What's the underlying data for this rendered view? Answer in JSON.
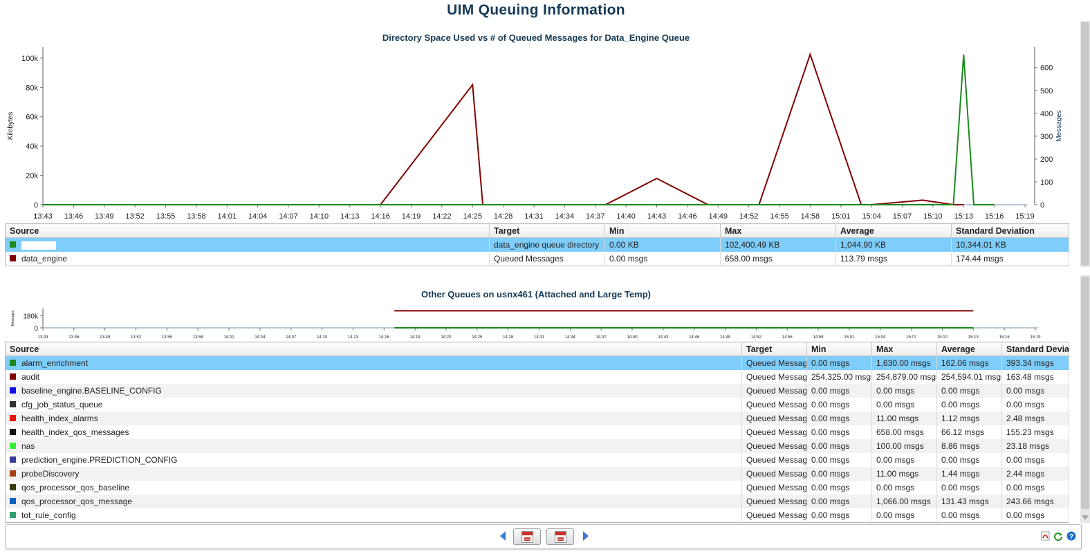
{
  "page": {
    "title": "UIM Queuing Information"
  },
  "chart1": {
    "title": "Directory Space Used  vs # of Queued Messages for Data_Engine Queue",
    "table": {
      "headers": [
        "Source",
        "Target",
        "Min",
        "Max",
        "Average",
        "Standard Deviation"
      ],
      "rows": [
        {
          "source": "",
          "target": "data_engine queue directory",
          "min": "0.00 KB",
          "max": "102,400.49 KB",
          "avg": "1,044.90 KB",
          "std": "10,344.01 KB",
          "color": "#1a8a1a",
          "selected": true
        },
        {
          "source": "data_engine",
          "target": "Queued Messages",
          "min": "0.00 msgs",
          "max": "658.00 msgs",
          "avg": "113.79 msgs",
          "std": "174.44 msgs",
          "color": "#800000",
          "selected": false
        }
      ]
    }
  },
  "chart2": {
    "title": "Other Queues on usnx461 (Attached and Large Temp)",
    "table": {
      "headers": [
        "Source",
        "Target",
        "Min",
        "Max",
        "Average",
        "Standard Deviation"
      ],
      "rows": [
        {
          "source": "alarm_enrichment",
          "target": "Queued Messages",
          "min": "0.00 msgs",
          "max": "1,630.00 msgs",
          "avg": "162.06 msgs",
          "std": "393.34 msgs",
          "color": "#1a8a1a"
        },
        {
          "source": "audit",
          "target": "Queued Messages",
          "min": "254,325.00 msgs",
          "max": "254,879.00 msgs",
          "avg": "254,594.01 msgs",
          "std": "163.48 msgs",
          "color": "#800000"
        },
        {
          "source": "baseline_engine.BASELINE_CONFIG",
          "target": "Queued Messages",
          "min": "0.00 msgs",
          "max": "0.00 msgs",
          "avg": "0.00 msgs",
          "std": "0.00 msgs",
          "color": "#1010ee"
        },
        {
          "source": "cfg_job_status_queue",
          "target": "Queued Messages",
          "min": "0.00 msgs",
          "max": "0.00 msgs",
          "avg": "0.00 msgs",
          "std": "0.00 msgs",
          "color": "#333333"
        },
        {
          "source": "health_index_alarms",
          "target": "Queued Messages",
          "min": "0.00 msgs",
          "max": "11.00 msgs",
          "avg": "1.12 msgs",
          "std": "2.48 msgs",
          "color": "#ee1111"
        },
        {
          "source": "health_index_qos_messages",
          "target": "Queued Messages",
          "min": "0.00 msgs",
          "max": "658.00 msgs",
          "avg": "66.12 msgs",
          "std": "155.23 msgs",
          "color": "#111111"
        },
        {
          "source": "nas",
          "target": "Queued Messages",
          "min": "0.00 msgs",
          "max": "100.00 msgs",
          "avg": "8.86 msgs",
          "std": "23.18 msgs",
          "color": "#33ee33"
        },
        {
          "source": "prediction_engine.PREDICTION_CONFIG",
          "target": "Queued Messages",
          "min": "0.00 msgs",
          "max": "0.00 msgs",
          "avg": "0.00 msgs",
          "std": "0.00 msgs",
          "color": "#3a3a99"
        },
        {
          "source": "probeDiscovery",
          "target": "Queued Messages",
          "min": "0.00 msgs",
          "max": "11.00 msgs",
          "avg": "1.44 msgs",
          "std": "2.44 msgs",
          "color": "#a04010"
        },
        {
          "source": "qos_processor_qos_baseline",
          "target": "Queued Messages",
          "min": "0.00 msgs",
          "max": "0.00 msgs",
          "avg": "0.00 msgs",
          "std": "0.00 msgs",
          "color": "#3a3a10"
        },
        {
          "source": "qos_processor_qos_message",
          "target": "Queued Messages",
          "min": "0.00 msgs",
          "max": "1,066.00 msgs",
          "avg": "131.43 msgs",
          "std": "243.66 msgs",
          "color": "#1060c0"
        },
        {
          "source": "tot_rule_config",
          "target": "Queued Messages",
          "min": "0.00 msgs",
          "max": "0.00 msgs",
          "avg": "0.00 msgs",
          "std": "0.00 msgs",
          "color": "#30a070"
        }
      ]
    }
  },
  "chart_data": [
    {
      "type": "line",
      "title": "Directory Space Used  vs # of Queued Messages for Data_Engine Queue",
      "xlabel": "",
      "ylabel": "Kilobytes",
      "y2label": "Messages",
      "x": [
        "13:43",
        "13:46",
        "13:49",
        "13:52",
        "13:55",
        "13:58",
        "14:01",
        "14:04",
        "14:07",
        "14:10",
        "14:13",
        "14:16",
        "14:19",
        "14:22",
        "14:25",
        "14:28",
        "14:31",
        "14:34",
        "14:37",
        "14:40",
        "14:43",
        "14:46",
        "14:49",
        "14:52",
        "14:55",
        "14:58",
        "15:01",
        "15:04",
        "15:07",
        "15:10",
        "15:13",
        "15:16",
        "15:19"
      ],
      "yticks": [
        "0",
        "20k",
        "40k",
        "60k",
        "80k",
        "100k"
      ],
      "ylim": [
        0,
        107500
      ],
      "y2ticks": [
        "0",
        "100",
        "200",
        "300",
        "400",
        "500",
        "600"
      ],
      "y2lim": [
        0,
        690
      ],
      "series": [
        {
          "axis": "right",
          "color": "#800000",
          "points": [
            [
              "13:43",
              0
            ],
            [
              "14:16",
              0
            ],
            [
              "14:25",
              525
            ],
            [
              "14:26",
              0
            ],
            [
              "14:28",
              0
            ],
            [
              "14:37",
              0
            ],
            [
              "14:38",
              0
            ],
            [
              "14:43",
              115
            ],
            [
              "14:48",
              0
            ],
            [
              "14:52",
              0
            ],
            [
              "14:53",
              0
            ],
            [
              "14:58",
              658
            ],
            [
              "15:03",
              0
            ],
            [
              "15:04",
              0
            ],
            [
              "15:09",
              20
            ],
            [
              "15:12",
              0
            ],
            [
              "15:13",
              0
            ]
          ]
        },
        {
          "axis": "left",
          "color": "#1a8a1a",
          "points": [
            [
              "13:43",
              0
            ],
            [
              "15:12",
              0
            ],
            [
              "15:13",
              102400
            ],
            [
              "15:14",
              0
            ],
            [
              "15:16",
              0
            ]
          ]
        }
      ],
      "grid": false
    },
    {
      "type": "line",
      "title": "Other Queues on usnx461 (Attached and Large Temp)",
      "ylabel": "Messages",
      "x": [
        "13:43",
        "13:46",
        "13:49",
        "13:52",
        "13:55",
        "13:58",
        "14:01",
        "14:04",
        "14:07",
        "14:10",
        "14:13",
        "14:16",
        "14:19",
        "14:22",
        "14:25",
        "14:28",
        "14:31",
        "14:34",
        "14:37",
        "14:40",
        "14:43",
        "14:46",
        "14:49",
        "14:52",
        "14:55",
        "14:58",
        "15:01",
        "15:04",
        "15:07",
        "15:10",
        "15:13",
        "15:16",
        "15:19"
      ],
      "yticks": [
        "0",
        "180k"
      ],
      "ylim": [
        0,
        290000
      ],
      "series": [
        {
          "name": "audit",
          "color": "#800000",
          "points": [
            [
              "14:17",
              254594
            ],
            [
              "15:13",
              254594
            ]
          ]
        },
        {
          "name": "alarm_enrichment",
          "color": "#1a8a1a",
          "points": [
            [
              "14:17",
              162
            ],
            [
              "15:13",
              162
            ]
          ]
        }
      ],
      "grid": false
    }
  ],
  "footer": {
    "icons": [
      "prev-arrow-icon",
      "calendar-start-icon",
      "calendar-end-icon",
      "next-arrow-icon",
      "pdf-icon",
      "refresh-icon",
      "help-icon"
    ]
  }
}
